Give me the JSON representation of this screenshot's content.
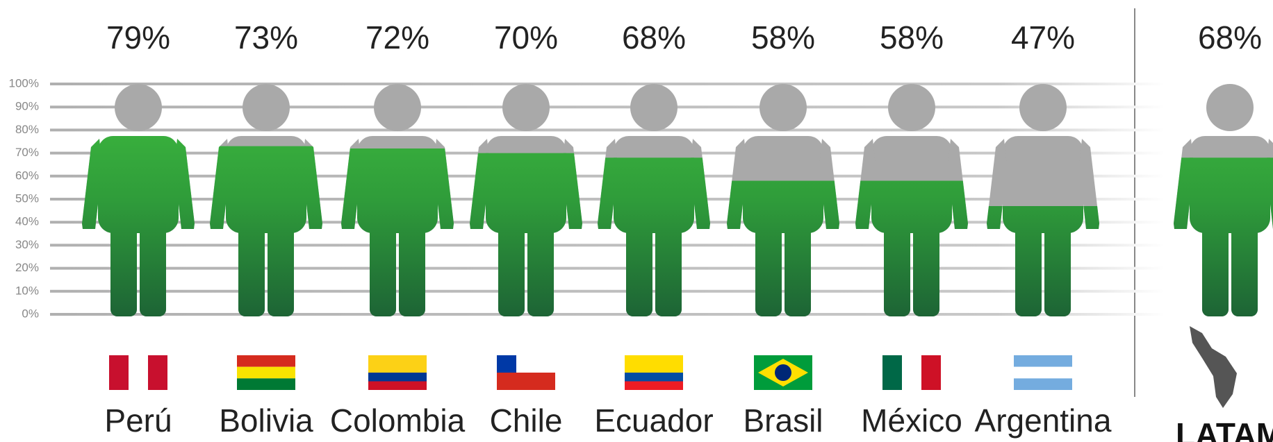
{
  "chart_data": {
    "type": "pictogram",
    "categories": [
      "Perú",
      "Bolivia",
      "Colombia",
      "Chile",
      "Ecuador",
      "Brasil",
      "México",
      "Argentina"
    ],
    "values": [
      79,
      73,
      72,
      70,
      68,
      58,
      58,
      47
    ],
    "value_labels": [
      "79%",
      "73%",
      "72%",
      "70%",
      "68%",
      "58%",
      "58%",
      "47%"
    ],
    "total": {
      "label": "LATAM",
      "value": 68,
      "value_label": "68%"
    },
    "color": "#3aaa3a",
    "empty_color": "#a9a9a9",
    "ylim": [
      0,
      100
    ],
    "yticks": [
      {
        "value": 0,
        "label": "0%"
      },
      {
        "value": 10,
        "label": "10%"
      },
      {
        "value": 20,
        "label": "20%"
      },
      {
        "value": 30,
        "label": "30%"
      },
      {
        "value": 40,
        "label": "40%"
      },
      {
        "value": 50,
        "label": "50%"
      },
      {
        "value": 60,
        "label": "60%"
      },
      {
        "value": 70,
        "label": "70%"
      },
      {
        "value": 80,
        "label": "80%"
      },
      {
        "value": 90,
        "label": "90%"
      },
      {
        "value": 100,
        "label": "100%"
      }
    ],
    "grid": true
  }
}
